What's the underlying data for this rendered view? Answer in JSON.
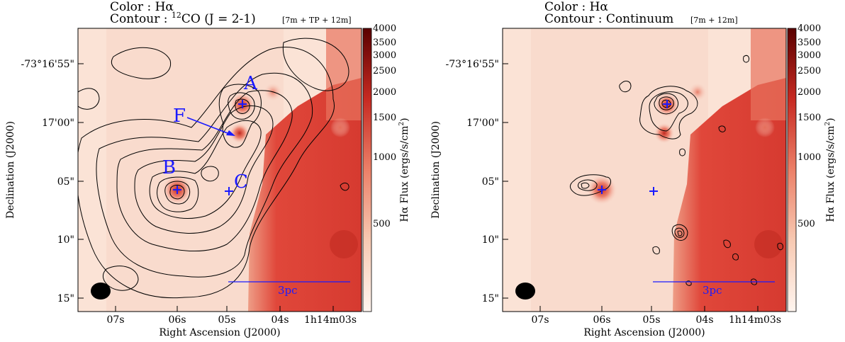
{
  "panels": [
    {
      "title_color": "Color   : Hα",
      "title_contour_prefix": "Contour : ",
      "title_contour_sup": "12",
      "title_contour_rest": "CO (J = 2-1)",
      "title_config": "[7m + TP + 12m]",
      "ylabel": "Declination (J2000)",
      "xlabel": "Right Ascension (J2000)",
      "yticks": [
        "-73°16'55\"",
        "17'00\"",
        "05\"",
        "10\"",
        "15\""
      ],
      "xticks": [
        "07s",
        "06s",
        "05s",
        "04s",
        "1h14m03s"
      ],
      "scalebar_label": "3pc",
      "source_labels": [
        "A",
        "B",
        "C",
        "F"
      ],
      "colorbar_ticks": [
        "4000",
        "3500",
        "3000",
        "2500",
        "2000",
        "1500",
        "1000",
        "500"
      ],
      "colorbar_label": "Hα Flux (ergs/s/cm",
      "colorbar_label_sup": "2",
      "colorbar_label_end": ")"
    },
    {
      "title_color": "Color   : Hα",
      "title_contour_prefix": "Contour : Continuum",
      "title_config": "[7m + 12m]",
      "ylabel": "Declination (J2000)",
      "xlabel": "Right Ascension (J2000)",
      "yticks": [
        "-73°16'55\"",
        "17'00\"",
        "05\"",
        "10\"",
        "15\""
      ],
      "xticks": [
        "07s",
        "06s",
        "05s",
        "04s",
        "1h14m03s"
      ],
      "scalebar_label": "3pc",
      "colorbar_ticks": [
        "4000",
        "3500",
        "3000",
        "2500",
        "2000",
        "1500",
        "1000",
        "500"
      ],
      "colorbar_label": "Hα Flux (ergs/s/cm",
      "colorbar_label_sup": "2",
      "colorbar_label_end": ")"
    }
  ],
  "colors": {
    "background_map": "#fbe3d6",
    "bright_region": "#e0473a",
    "marker": "#1a1aff",
    "contour": "#000000",
    "colorbar_top": "#5a0000",
    "colorbar_bottom": "#fff5ef"
  }
}
